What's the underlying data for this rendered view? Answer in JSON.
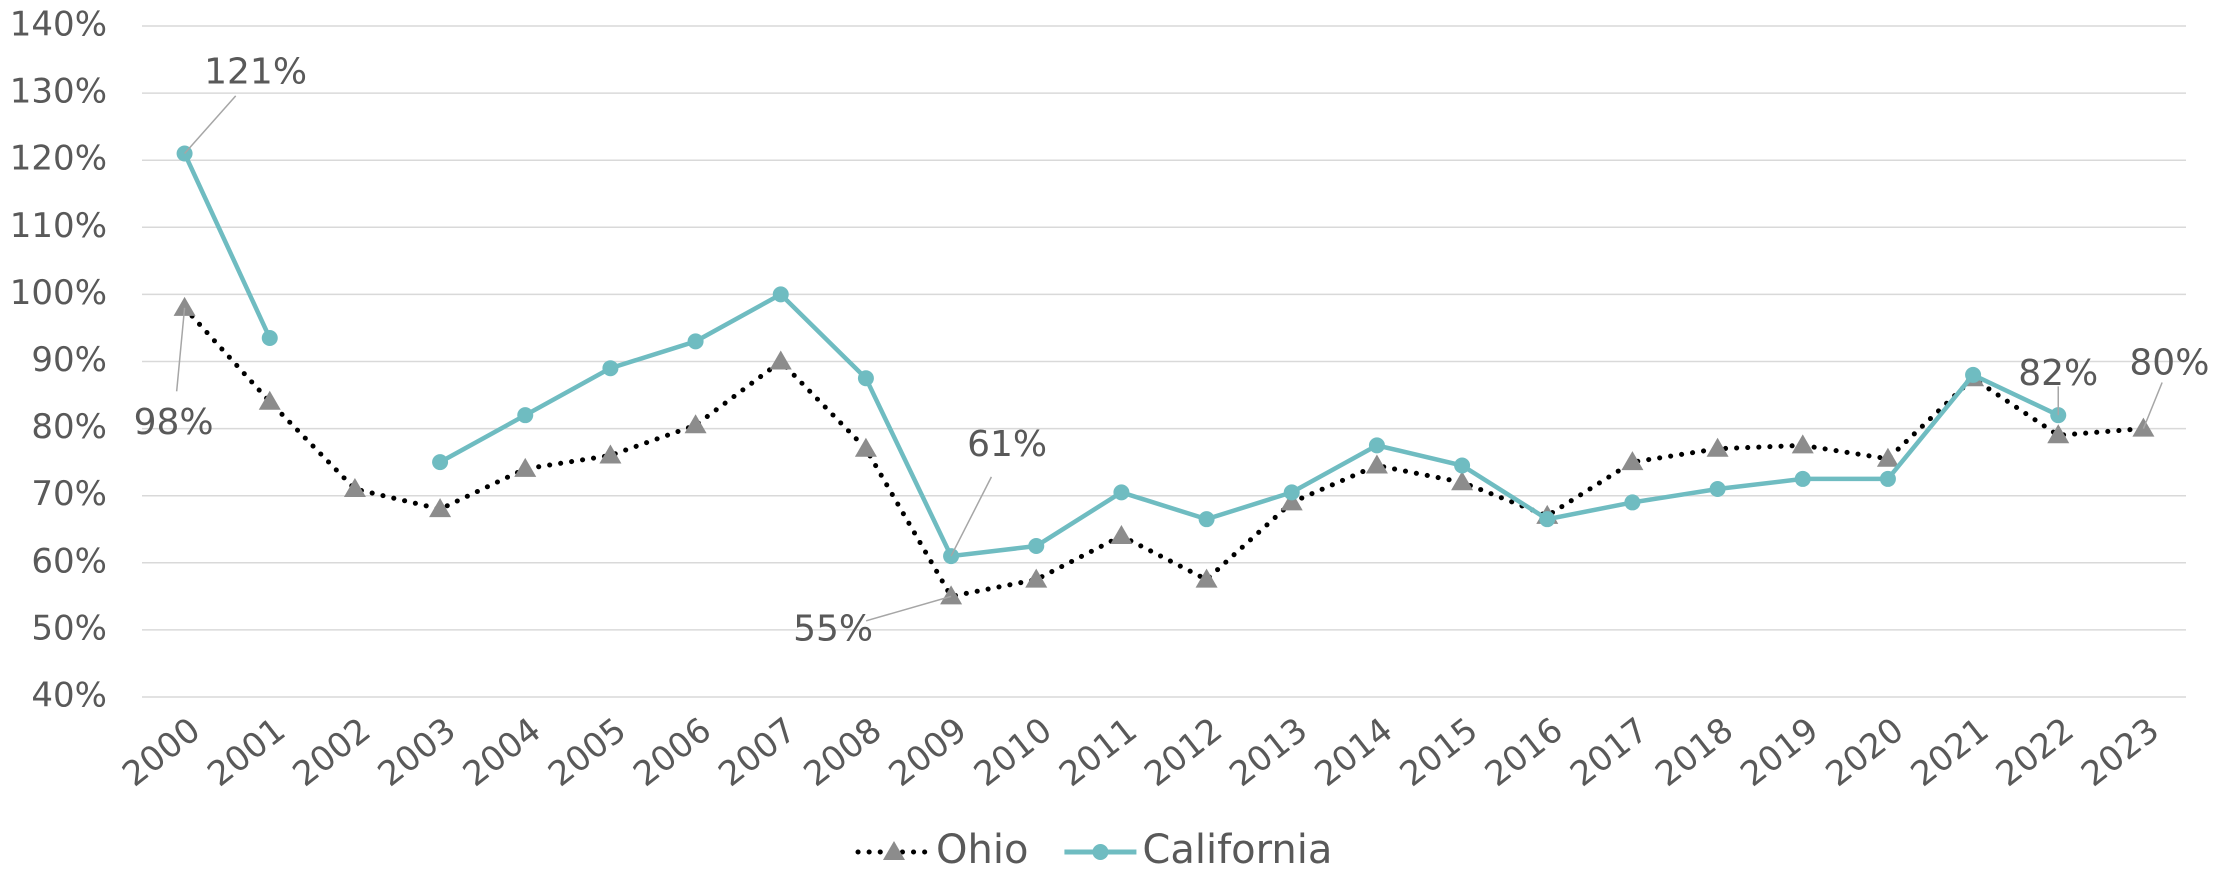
{
  "chart_data": {
    "type": "line",
    "categories": [
      "2000",
      "2001",
      "2002",
      "2003",
      "2004",
      "2005",
      "2006",
      "2007",
      "2008",
      "2009",
      "2010",
      "2011",
      "2012",
      "2013",
      "2014",
      "2015",
      "2016",
      "2017",
      "2018",
      "2019",
      "2020",
      "2021",
      "2022",
      "2023"
    ],
    "series": [
      {
        "name": "Ohio",
        "color": "#000000",
        "marker_color": "#8c8c8c",
        "marker": "triangle",
        "dash": "dotted",
        "values": [
          98,
          84,
          71,
          68,
          74,
          76,
          80.5,
          90,
          77,
          55,
          57.5,
          64,
          57.5,
          69,
          74.5,
          72,
          67,
          75,
          77,
          77.5,
          75.5,
          87.5,
          79,
          80
        ],
        "value_labels": [
          "98%",
          null,
          null,
          null,
          null,
          null,
          null,
          null,
          null,
          "55%",
          null,
          null,
          null,
          null,
          null,
          null,
          null,
          null,
          null,
          null,
          null,
          null,
          null,
          "80%"
        ]
      },
      {
        "name": "California",
        "color": "#6fbcc1",
        "marker_color": "#6fbcc1",
        "marker": "circle",
        "dash": "solid",
        "values": [
          121,
          93.5,
          null,
          75,
          82,
          89,
          93,
          100,
          87.5,
          61,
          62.5,
          70.5,
          66.5,
          70.5,
          77.5,
          74.5,
          66.5,
          69,
          71,
          72.5,
          72.5,
          88,
          82,
          null
        ],
        "value_labels": [
          "121%",
          null,
          null,
          null,
          null,
          null,
          null,
          null,
          null,
          "61%",
          null,
          null,
          null,
          null,
          null,
          null,
          null,
          null,
          null,
          null,
          null,
          null,
          "82%",
          null
        ]
      }
    ],
    "ylim": [
      40,
      140
    ],
    "yticks": [
      {
        "value": 40,
        "label": "40%"
      },
      {
        "value": 50,
        "label": "50%"
      },
      {
        "value": 60,
        "label": "60%"
      },
      {
        "value": 70,
        "label": "70%"
      },
      {
        "value": 80,
        "label": "80%"
      },
      {
        "value": 90,
        "label": "90%"
      },
      {
        "value": 100,
        "label": "100%"
      },
      {
        "value": 110,
        "label": "110%"
      },
      {
        "value": 120,
        "label": "120%"
      },
      {
        "value": 130,
        "label": "130%"
      },
      {
        "value": 140,
        "label": "140%"
      }
    ],
    "grid": true,
    "legend": "bottom"
  }
}
